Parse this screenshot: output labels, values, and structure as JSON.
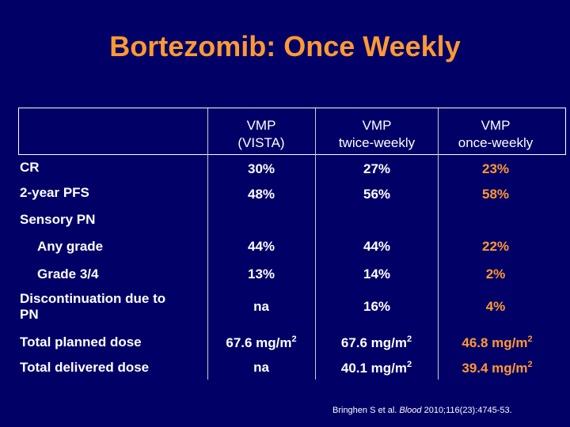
{
  "title": "Bortezomib: Once Weekly",
  "columns": [
    {
      "line1": "VMP",
      "line2": "(VISTA)"
    },
    {
      "line1": "VMP",
      "line2": "twice-weekly"
    },
    {
      "line1": "VMP",
      "line2": "once-weekly"
    }
  ],
  "rows": {
    "cr": {
      "label": "CR",
      "values": [
        "30%",
        "27%",
        "23%"
      ]
    },
    "pfs": {
      "label": "2-year PFS",
      "values": [
        "48%",
        "56%",
        "58%"
      ]
    },
    "sensory": {
      "label": "Sensory PN"
    },
    "any_grade": {
      "label": "Any grade",
      "values": [
        "44%",
        "44%",
        "22%"
      ]
    },
    "grade34": {
      "label": "Grade 3/4",
      "values": [
        "13%",
        "14%",
        "2%"
      ]
    },
    "discont": {
      "label_line1": "Discontinuation due to",
      "label_line2": "PN",
      "values": [
        "na",
        "16%",
        "4%"
      ]
    },
    "planned": {
      "label": "Total planned dose",
      "values": [
        "67.6 mg/m",
        "67.6 mg/m",
        "46.8 mg/m"
      ],
      "sup": "2"
    },
    "delivered": {
      "label": "Total delivered dose",
      "values": [
        "na",
        "40.1 mg/m",
        "39.4 mg/m"
      ],
      "sup": "2"
    }
  },
  "citation": {
    "prefix": "Bringhen S et al. ",
    "journal": "Blood",
    "suffix": " 2010;116(23):4745-53."
  },
  "colors": {
    "background": "#000066",
    "accent": "#ff9933",
    "text": "#ffffff"
  }
}
